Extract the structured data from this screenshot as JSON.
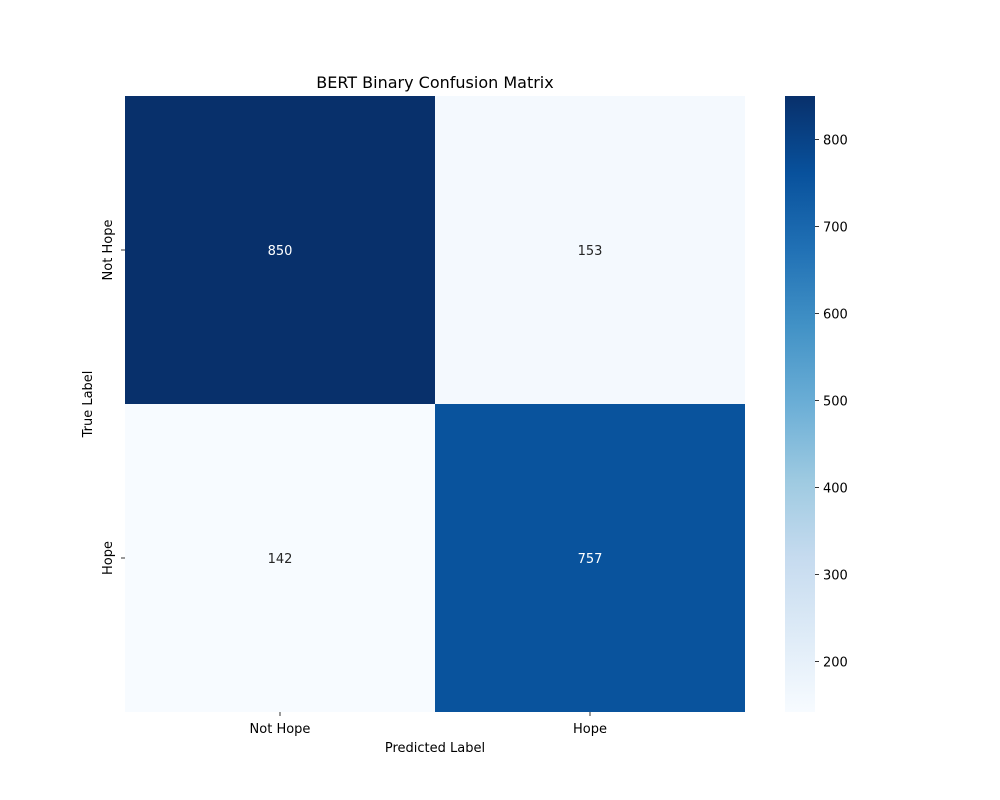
{
  "chart_data": {
    "type": "heatmap",
    "title": "BERT Binary Confusion Matrix",
    "xlabel": "Predicted Label",
    "ylabel": "True Label",
    "x_categories": [
      "Not Hope",
      "Hope"
    ],
    "y_categories": [
      "Not Hope",
      "Hope"
    ],
    "values": [
      [
        850,
        153
      ],
      [
        142,
        757
      ]
    ],
    "colormap": "Blues",
    "colorbar": {
      "range": [
        142,
        850
      ],
      "ticks": [
        200,
        300,
        400,
        500,
        600,
        700,
        800
      ]
    },
    "grid": false
  }
}
